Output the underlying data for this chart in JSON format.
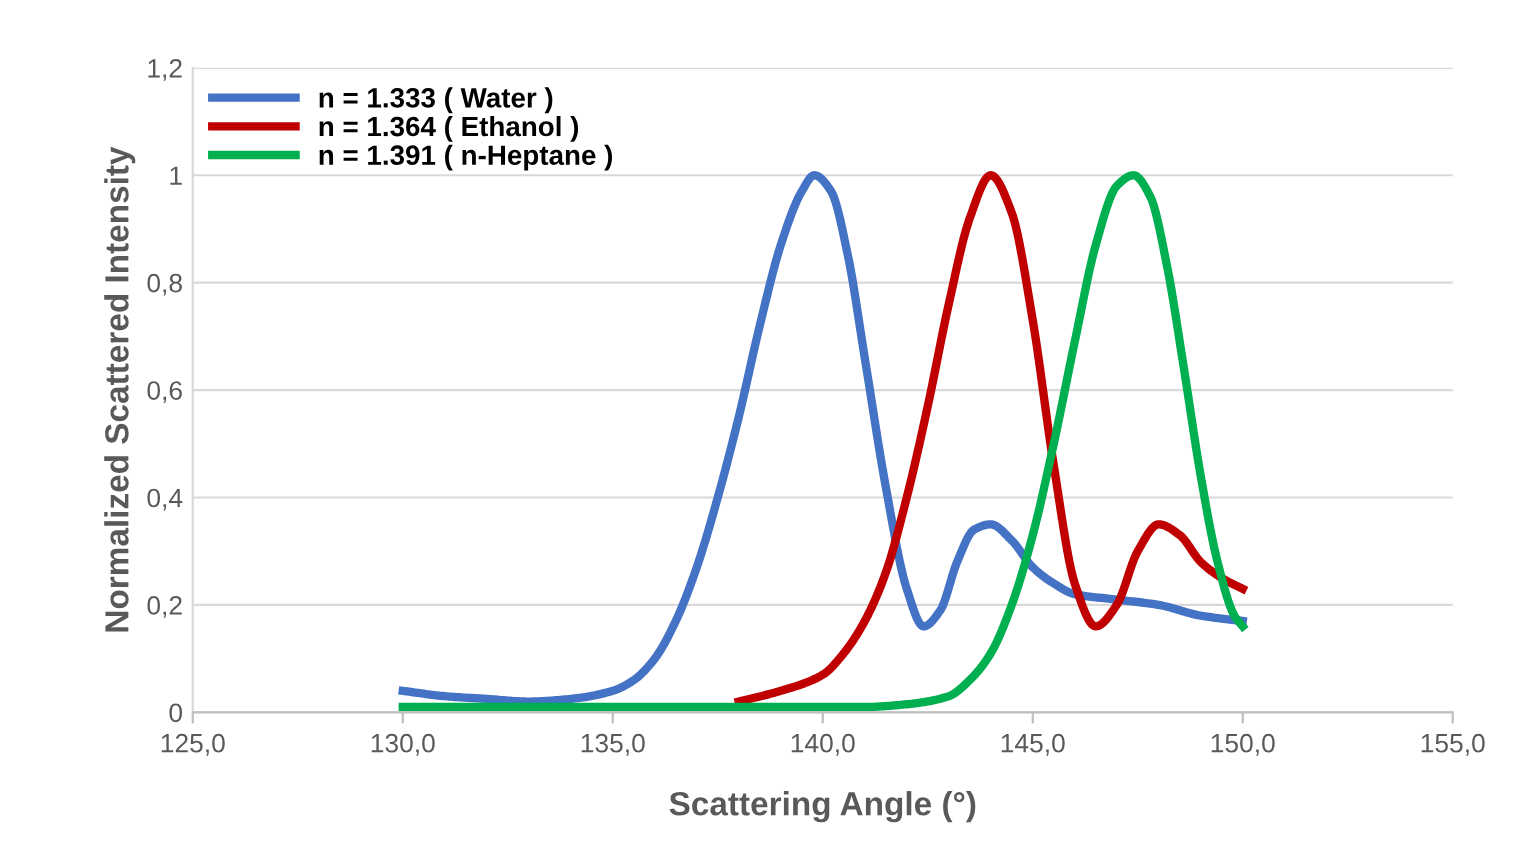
{
  "chart_data": {
    "type": "line",
    "xlabel": "Scattering Angle (°)",
    "ylabel": "Normalized Scattered Intensity",
    "xlim": [
      125,
      155
    ],
    "xticks": [
      {
        "value": 125,
        "label": "125,0"
      },
      {
        "value": 130,
        "label": "130,0"
      },
      {
        "value": 135,
        "label": "135,0"
      },
      {
        "value": 140,
        "label": "140,0"
      },
      {
        "value": 145,
        "label": "145,0"
      },
      {
        "value": 150,
        "label": "150,0"
      },
      {
        "value": 155,
        "label": "155,0"
      }
    ],
    "ylim": [
      0,
      1.2
    ],
    "yticks": [
      0,
      {
        "value": 0.2,
        "label": "0,2"
      },
      {
        "value": 0.4,
        "label": "0,4"
      },
      {
        "value": 0.6,
        "label": "0,6"
      },
      {
        "value": 0.8,
        "label": "0,8"
      },
      1,
      {
        "value": 1.2,
        "label": "1,2"
      }
    ],
    "grid": "y",
    "legend": "top left",
    "marker": "none",
    "line_style": "solid",
    "series": [
      {
        "name": "n = 1.333 ( Water )",
        "color": "#4472c4",
        "x": [
          130,
          131,
          132,
          133,
          134,
          135,
          135.5,
          136,
          136.5,
          137,
          137.5,
          138,
          138.5,
          139,
          139.5,
          139.8,
          140.2,
          140.6,
          141,
          141.5,
          142,
          142.4,
          142.8,
          143.2,
          143.6,
          144,
          144.5,
          145,
          145.5,
          146,
          147,
          148,
          149,
          150
        ],
        "values": [
          0.04,
          0.03,
          0.025,
          0.02,
          0.025,
          0.04,
          0.06,
          0.1,
          0.17,
          0.27,
          0.4,
          0.55,
          0.72,
          0.87,
          0.97,
          1.0,
          0.97,
          0.85,
          0.66,
          0.42,
          0.23,
          0.16,
          0.19,
          0.28,
          0.34,
          0.35,
          0.32,
          0.27,
          0.24,
          0.22,
          0.21,
          0.2,
          0.18,
          0.17
        ]
      },
      {
        "name": "n = 1.364 ( Ethanol )",
        "color": "#c00000",
        "x": [
          138,
          139,
          140,
          140.5,
          141,
          141.5,
          142,
          142.5,
          143,
          143.5,
          144,
          144.5,
          145,
          145.5,
          146,
          146.5,
          147,
          147.5,
          148,
          148.5,
          149,
          149.5,
          150
        ],
        "values": [
          0.02,
          0.04,
          0.07,
          0.11,
          0.17,
          0.26,
          0.4,
          0.57,
          0.76,
          0.92,
          1.0,
          0.93,
          0.73,
          0.46,
          0.24,
          0.16,
          0.2,
          0.3,
          0.35,
          0.33,
          0.28,
          0.25,
          0.23
        ]
      },
      {
        "name": "n = 1.391 ( n-Heptane )",
        "color": "#00b050",
        "x": [
          130,
          134,
          138,
          141,
          142,
          143,
          143.5,
          144,
          144.5,
          145,
          145.5,
          146,
          146.5,
          147,
          147.4,
          147.8,
          148.2,
          148.6,
          149,
          149.4,
          149.8,
          150
        ],
        "values": [
          0.01,
          0.01,
          0.01,
          0.01,
          0.015,
          0.03,
          0.06,
          0.11,
          0.2,
          0.33,
          0.5,
          0.69,
          0.87,
          0.98,
          1.0,
          0.96,
          0.83,
          0.64,
          0.44,
          0.28,
          0.18,
          0.16
        ]
      }
    ]
  }
}
